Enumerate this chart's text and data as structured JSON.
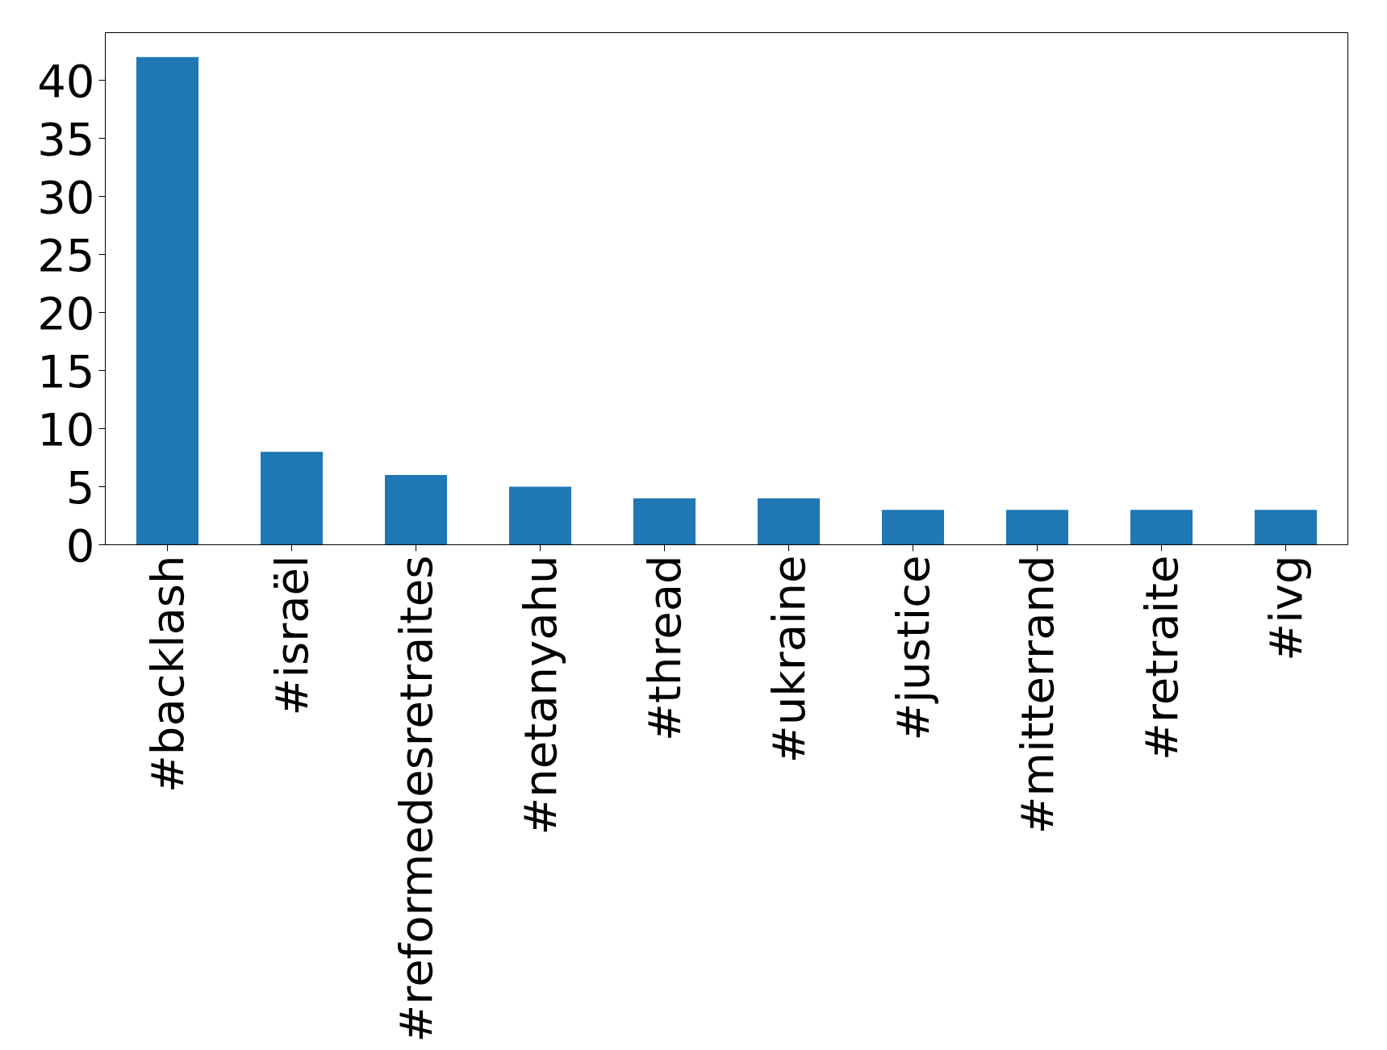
{
  "chart_data": {
    "type": "bar",
    "categories": [
      "#backlash",
      "#israël",
      "#reformedesretraites",
      "#netanyahu",
      "#thread",
      "#ukraine",
      "#justice",
      "#mitterrand",
      "#retraite",
      "#ivg"
    ],
    "values": [
      42,
      8,
      6,
      5,
      4,
      4,
      3,
      3,
      3,
      3
    ],
    "color": "#1f77b4",
    "ylim": [
      0,
      44.1
    ],
    "yticks": [
      0,
      5,
      10,
      15,
      20,
      25,
      30,
      35,
      40
    ],
    "grid": false
  }
}
